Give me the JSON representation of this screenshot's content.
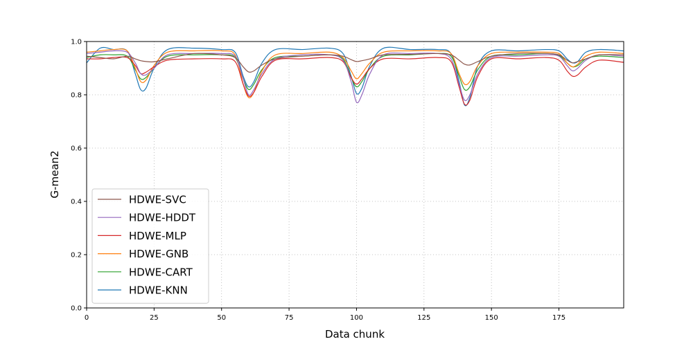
{
  "chart_data": {
    "type": "line",
    "xlabel": "Data chunk",
    "ylabel": "G-mean2",
    "xlim": [
      0,
      199
    ],
    "ylim": [
      0.0,
      1.0
    ],
    "x_ticks": [
      0,
      25,
      50,
      75,
      100,
      125,
      150,
      175
    ],
    "y_ticks": [
      "0.0",
      "0.2",
      "0.4",
      "0.6",
      "0.8",
      "1.0"
    ],
    "grid": true,
    "legend_position": "lower-left",
    "x": [
      0,
      5,
      10,
      15,
      18,
      20,
      22,
      25,
      30,
      40,
      50,
      55,
      58,
      60,
      62,
      65,
      70,
      80,
      90,
      95,
      98,
      100,
      102,
      105,
      110,
      120,
      130,
      135,
      138,
      140,
      142,
      145,
      150,
      160,
      170,
      175,
      178,
      180,
      182,
      185,
      190,
      199
    ],
    "series": [
      {
        "name": "HDWE-SVC",
        "color": "#8c564b",
        "values": [
          0.945,
          0.94,
          0.935,
          0.945,
          0.935,
          0.928,
          0.925,
          0.924,
          0.935,
          0.955,
          0.95,
          0.94,
          0.905,
          0.886,
          0.89,
          0.912,
          0.935,
          0.945,
          0.95,
          0.945,
          0.932,
          0.925,
          0.928,
          0.935,
          0.95,
          0.952,
          0.955,
          0.95,
          0.93,
          0.915,
          0.912,
          0.925,
          0.945,
          0.955,
          0.955,
          0.95,
          0.93,
          0.92,
          0.925,
          0.935,
          0.95,
          0.95
        ]
      },
      {
        "name": "HDWE-HDDT",
        "color": "#9467bd",
        "values": [
          0.955,
          0.96,
          0.965,
          0.96,
          0.92,
          0.88,
          0.875,
          0.9,
          0.95,
          0.955,
          0.955,
          0.945,
          0.86,
          0.8,
          0.82,
          0.88,
          0.935,
          0.95,
          0.95,
          0.93,
          0.85,
          0.772,
          0.8,
          0.88,
          0.95,
          0.955,
          0.955,
          0.935,
          0.84,
          0.78,
          0.8,
          0.88,
          0.94,
          0.945,
          0.95,
          0.945,
          0.91,
          0.89,
          0.9,
          0.93,
          0.95,
          0.945
        ]
      },
      {
        "name": "HDWE-MLP",
        "color": "#d62728",
        "values": [
          0.935,
          0.935,
          0.94,
          0.94,
          0.91,
          0.88,
          0.885,
          0.905,
          0.93,
          0.935,
          0.935,
          0.925,
          0.84,
          0.795,
          0.81,
          0.87,
          0.93,
          0.935,
          0.94,
          0.925,
          0.865,
          0.84,
          0.86,
          0.9,
          0.935,
          0.935,
          0.94,
          0.925,
          0.83,
          0.765,
          0.78,
          0.87,
          0.935,
          0.935,
          0.94,
          0.93,
          0.89,
          0.87,
          0.875,
          0.905,
          0.93,
          0.922
        ]
      },
      {
        "name": "HDWE-GNB",
        "color": "#ff7f0e",
        "values": [
          0.96,
          0.965,
          0.97,
          0.965,
          0.9,
          0.85,
          0.855,
          0.91,
          0.96,
          0.965,
          0.965,
          0.95,
          0.84,
          0.79,
          0.81,
          0.89,
          0.95,
          0.955,
          0.96,
          0.94,
          0.89,
          0.86,
          0.88,
          0.92,
          0.96,
          0.965,
          0.965,
          0.955,
          0.88,
          0.84,
          0.85,
          0.91,
          0.955,
          0.96,
          0.96,
          0.955,
          0.92,
          0.905,
          0.915,
          0.945,
          0.96,
          0.955
        ]
      },
      {
        "name": "HDWE-CART",
        "color": "#2ca02c",
        "values": [
          0.94,
          0.95,
          0.95,
          0.945,
          0.895,
          0.86,
          0.865,
          0.9,
          0.945,
          0.95,
          0.95,
          0.94,
          0.86,
          0.82,
          0.84,
          0.895,
          0.94,
          0.945,
          0.95,
          0.935,
          0.865,
          0.83,
          0.85,
          0.9,
          0.945,
          0.95,
          0.955,
          0.945,
          0.87,
          0.82,
          0.83,
          0.895,
          0.945,
          0.95,
          0.955,
          0.948,
          0.92,
          0.905,
          0.91,
          0.935,
          0.945,
          0.94
        ]
      },
      {
        "name": "HDWE-KNN",
        "color": "#1f77b4",
        "values": [
          0.92,
          0.975,
          0.97,
          0.965,
          0.88,
          0.82,
          0.825,
          0.9,
          0.97,
          0.975,
          0.97,
          0.96,
          0.87,
          0.83,
          0.85,
          0.92,
          0.97,
          0.97,
          0.975,
          0.955,
          0.87,
          0.805,
          0.825,
          0.91,
          0.975,
          0.97,
          0.97,
          0.955,
          0.85,
          0.762,
          0.79,
          0.91,
          0.965,
          0.965,
          0.97,
          0.965,
          0.935,
          0.92,
          0.925,
          0.96,
          0.97,
          0.965
        ]
      }
    ]
  }
}
